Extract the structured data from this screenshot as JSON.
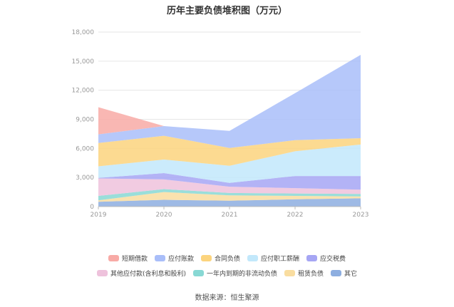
{
  "chart_data": {
    "type": "area",
    "stacked": true,
    "title": "历年主要负债堆积图（万元）",
    "x": [
      "2019",
      "2020",
      "2021",
      "2022",
      "2023"
    ],
    "ylim": [
      0,
      18000
    ],
    "yticks": [
      "0",
      "3,000",
      "6,000",
      "9,000",
      "12,000",
      "15,000",
      "18,000"
    ],
    "grid": true,
    "legend_position": "bottom",
    "series": [
      {
        "name": "其它",
        "color": "#8daee0",
        "values": [
          500,
          700,
          600,
          750,
          850
        ]
      },
      {
        "name": "租赁负债",
        "color": "#f9dda0",
        "values": [
          150,
          800,
          550,
          350,
          200
        ]
      },
      {
        "name": "一年内到期的非流动负债",
        "color": "#88d8d4",
        "values": [
          450,
          300,
          250,
          250,
          250
        ]
      },
      {
        "name": "其他应付款(含利息和股利)",
        "color": "#eec2dc",
        "values": [
          1800,
          1000,
          650,
          550,
          450
        ]
      },
      {
        "name": "应交税费",
        "color": "#a6a6f4",
        "values": [
          50,
          650,
          400,
          1250,
          1400
        ]
      },
      {
        "name": "应付职工薪酬",
        "color": "#c2e8fb",
        "values": [
          1200,
          1400,
          1750,
          2550,
          3250
        ]
      },
      {
        "name": "合同负债",
        "color": "#fcd47e",
        "values": [
          2400,
          2450,
          1850,
          1150,
          650
        ]
      },
      {
        "name": "应付账款",
        "color": "#a9bef9",
        "values": [
          900,
          1000,
          1750,
          4850,
          8600
        ]
      },
      {
        "name": "短期借款",
        "color": "#f8aaa6",
        "values": [
          2800,
          0,
          0,
          0,
          0
        ]
      }
    ]
  },
  "legend_rows": [
    [
      "短期借款",
      "应付账款",
      "合同负债",
      "应付职工薪酬",
      "应交税费"
    ],
    [
      "其他应付款(含利息和股利)",
      "一年内到期的非流动负债",
      "租赁负债",
      "其它"
    ]
  ],
  "source": "数据来源：恒生聚源"
}
